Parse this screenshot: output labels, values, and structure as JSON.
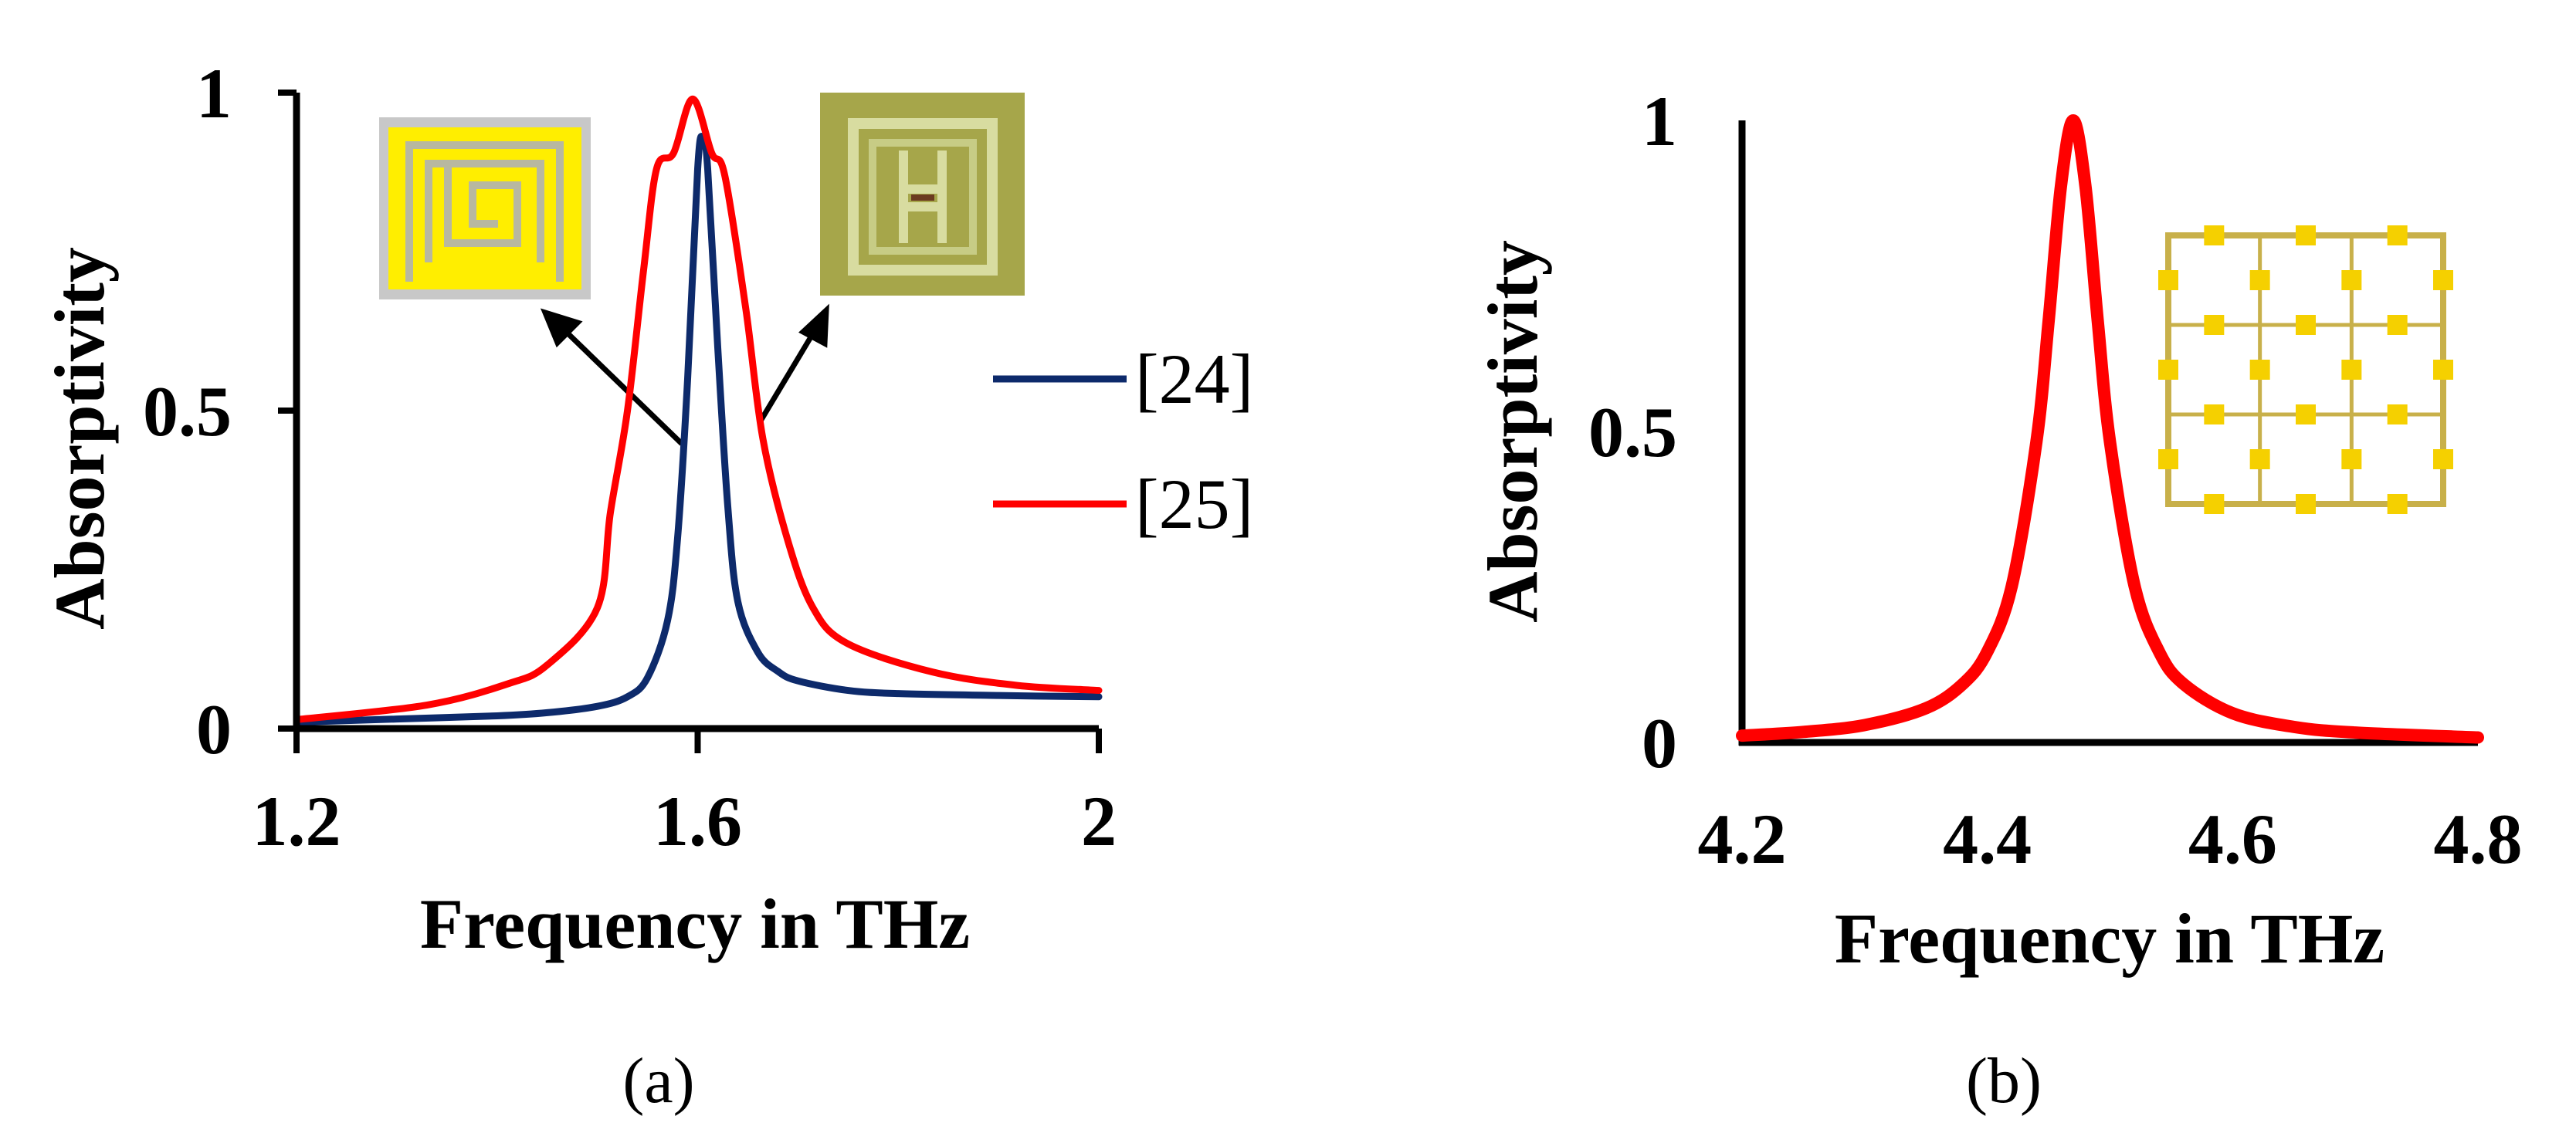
{
  "chart_data": [
    {
      "panel": "(a)",
      "type": "line",
      "xlabel": "Frequency in THz",
      "ylabel": "Absorptivity",
      "xlim": [
        1.2,
        2.0
      ],
      "ylim": [
        0,
        1
      ],
      "xticks": [
        1.2,
        1.6,
        2
      ],
      "xtick_labels": [
        "1.2",
        "1.6",
        "2"
      ],
      "yticks": [
        0,
        0.5,
        1
      ],
      "ytick_labels": [
        "0",
        "0.5",
        "1"
      ],
      "grid": false,
      "legend_placement": "right",
      "insets": [
        "square-spiral-unit-cell",
        "split-ring-H-unit-cell"
      ],
      "series": [
        {
          "name": "[24]",
          "color": "#0d2a6b",
          "x": [
            1.2,
            1.3,
            1.4,
            1.45,
            1.5,
            1.53,
            1.55,
            1.57,
            1.58,
            1.59,
            1.6,
            1.605,
            1.61,
            1.62,
            1.63,
            1.64,
            1.66,
            1.68,
            1.7,
            1.75,
            1.8,
            1.9,
            2.0
          ],
          "y": [
            0.01,
            0.015,
            0.02,
            0.025,
            0.035,
            0.05,
            0.08,
            0.17,
            0.3,
            0.55,
            0.88,
            0.93,
            0.88,
            0.6,
            0.35,
            0.2,
            0.12,
            0.09,
            0.075,
            0.06,
            0.055,
            0.052,
            0.05
          ]
        },
        {
          "name": "[25]",
          "color": "#ff0000",
          "x": [
            1.2,
            1.33,
            1.41,
            1.45,
            1.5,
            1.513,
            1.53,
            1.546,
            1.559,
            1.576,
            1.595,
            1.614,
            1.627,
            1.648,
            1.665,
            1.69,
            1.715,
            1.749,
            1.834,
            1.918,
            2.0
          ],
          "y": [
            0.014,
            0.037,
            0.07,
            0.1,
            0.19,
            0.34,
            0.5,
            0.72,
            0.88,
            0.905,
            0.99,
            0.905,
            0.87,
            0.66,
            0.456,
            0.295,
            0.19,
            0.134,
            0.089,
            0.068,
            0.06
          ]
        }
      ]
    },
    {
      "panel": "(b)",
      "type": "line",
      "xlabel": "Frequency in THz",
      "ylabel": "Absorptivity",
      "xlim": [
        4.2,
        4.8
      ],
      "ylim": [
        0,
        1
      ],
      "xticks": [
        4.2,
        4.4,
        4.6,
        4.8
      ],
      "xtick_labels": [
        "4.2",
        "4.4",
        "4.6",
        "4.8"
      ],
      "yticks": [
        0,
        0.5,
        1
      ],
      "ytick_labels": [
        "0",
        "0.5",
        "1"
      ],
      "grid": false,
      "insets": [
        "cross-grid-unit-cell"
      ],
      "series": [
        {
          "color": "#ff0000",
          "x": [
            4.2,
            4.25,
            4.3,
            4.35,
            4.38,
            4.4,
            4.42,
            4.44,
            4.45,
            4.46,
            4.47,
            4.48,
            4.49,
            4.5,
            4.52,
            4.54,
            4.56,
            4.6,
            4.65,
            4.7,
            4.8
          ],
          "y": [
            0.011,
            0.017,
            0.028,
            0.055,
            0.094,
            0.146,
            0.252,
            0.483,
            0.678,
            0.894,
            1.0,
            0.894,
            0.678,
            0.483,
            0.252,
            0.146,
            0.094,
            0.047,
            0.025,
            0.016,
            0.008
          ]
        }
      ]
    }
  ]
}
